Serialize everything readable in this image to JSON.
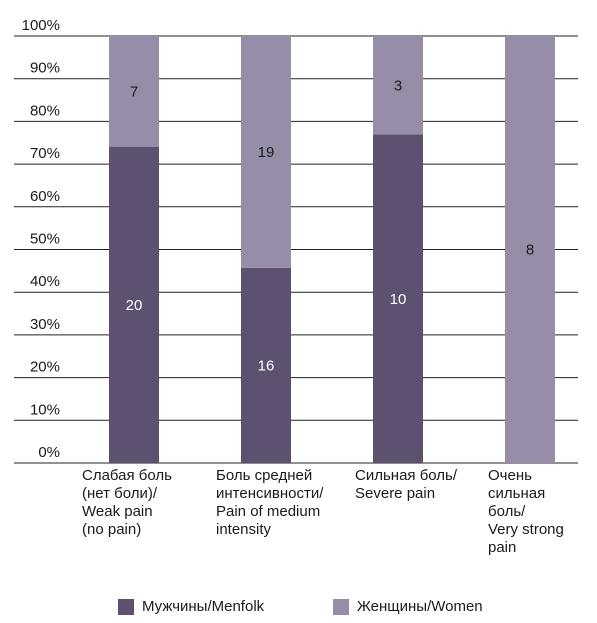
{
  "chart_data": {
    "type": "bar",
    "stacked": true,
    "normalized_to_percent": true,
    "categories": [
      [
        "Слабая боль",
        "(нет боли)/",
        "Weak pain",
        "(no pain)"
      ],
      [
        "Боль средней",
        "интенсивности/",
        "Pain of medium",
        "intensity"
      ],
      [
        "Сильная боль/",
        "Severe pain"
      ],
      [
        "Очень",
        "сильная",
        "боль/",
        "Very strong",
        "pain"
      ]
    ],
    "series": [
      {
        "name": "Мужчины/Menfolk",
        "color": "#5e5170",
        "values": [
          20,
          16,
          10,
          0
        ]
      },
      {
        "name": "Женщины/Women",
        "color": "#968ea8",
        "values": [
          7,
          19,
          3,
          8
        ]
      }
    ],
    "y_ticks": [
      "0%",
      "10%",
      "20%",
      "30%",
      "40%",
      "50%",
      "60%",
      "70%",
      "80%",
      "90%",
      "100%"
    ],
    "ylim": [
      0,
      100
    ],
    "grid": true,
    "legend_position": "bottom"
  }
}
